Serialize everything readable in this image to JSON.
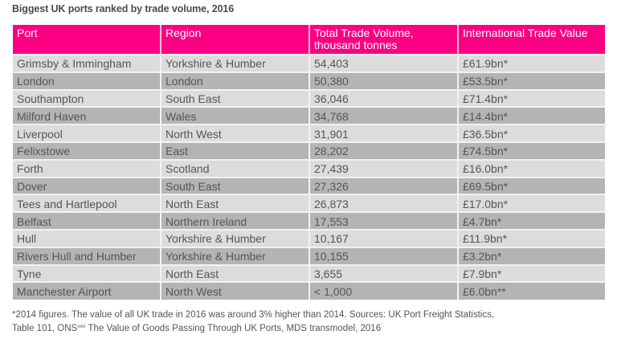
{
  "title": "Biggest UK ports ranked by trade volume, 2016",
  "table": {
    "headers": [
      "Port",
      "Region",
      "Total Trade Volume, thousand tonnes",
      "International Trade Value"
    ],
    "rows": [
      [
        "Grimsby & Immingham",
        "Yorkshire & Humber",
        "54,403",
        "£61.9bn*"
      ],
      [
        "London",
        "London",
        "50,380",
        "£53.5bn*"
      ],
      [
        "Southampton",
        "South East",
        "36,046",
        "£71.4bn*"
      ],
      [
        "Milford Haven",
        "Wales",
        "34,768",
        "£14.4bn*"
      ],
      [
        "Liverpool",
        "North West",
        "31,901",
        "£36.5bn*"
      ],
      [
        "Felixstowe",
        "East",
        "28,202",
        "£74.5bn*"
      ],
      [
        "Forth",
        "Scotland",
        "27,439",
        "£16.0bn*"
      ],
      [
        "Dover",
        "South East",
        "27,326",
        "£69.5bn*"
      ],
      [
        "Tees and Hartlepool",
        "North East",
        "26,873",
        "£17.0bn*"
      ],
      [
        "Belfast",
        "Northern Ireland",
        "17,553",
        "£4.7bn*"
      ],
      [
        "Hull",
        "Yorkshire & Humber",
        "10,167",
        "£11.9bn*"
      ],
      [
        "Rivers Hull and Humber",
        "Yorkshire & Humber",
        "10,155",
        "£3.2bn*"
      ],
      [
        "Tyne",
        "North East",
        "3,655",
        "£7.9bn*"
      ],
      [
        "Manchester Airport",
        "North West",
        "< 1,000",
        "£6.0bn**"
      ]
    ]
  },
  "footnote": {
    "line1": "*2014 figures. The value of all UK trade in 2016 was around 3% higher than 2014. Sources: UK Port Freight Statistics,",
    "line2_prefix": "Table 101, ONS",
    "line2_sup": "xxiv",
    "line2_suffix": " The Value of Goods Passing Through UK Ports, MDS transmodel, 2016"
  },
  "colors": {
    "header_bg": "#fc0084",
    "row_light": "#dcdcdc",
    "row_dark": "#b4b4b4"
  }
}
